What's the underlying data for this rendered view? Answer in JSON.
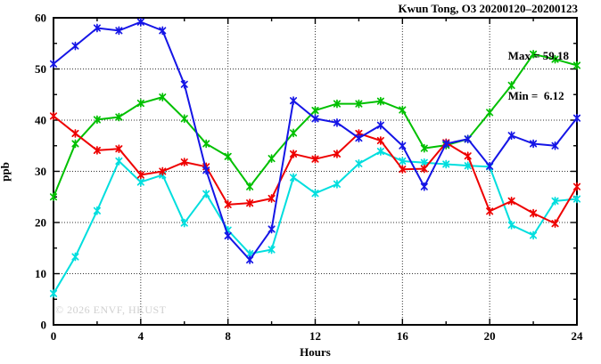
{
  "chart_data": {
    "type": "line",
    "title": "Kwun Tong, O3 20200120–20200123",
    "xlabel": "Hours",
    "ylabel": "ppb",
    "xlim": [
      0,
      24
    ],
    "ylim": [
      0,
      60
    ],
    "x_ticks": [
      0,
      4,
      8,
      12,
      16,
      20,
      24
    ],
    "x_minor_ticks": [
      2,
      6,
      10,
      14,
      18,
      22
    ],
    "y_ticks": [
      0,
      10,
      20,
      30,
      40,
      50,
      60
    ],
    "y_minor_ticks": [
      5,
      15,
      25,
      35,
      45,
      55
    ],
    "grid": "dotted lines at major ticks, mirrored inward tick marks on all four borders",
    "legend": "none",
    "marker": "asterisk",
    "x": [
      0,
      1,
      2,
      3,
      4,
      5,
      6,
      7,
      8,
      9,
      10,
      11,
      12,
      13,
      14,
      15,
      16,
      17,
      18,
      19,
      20,
      21,
      22,
      23,
      24
    ],
    "series": [
      {
        "name": "green",
        "color": "#00c000",
        "values": [
          25,
          35.4,
          40.1,
          40.6,
          43.3,
          44.5,
          40.3,
          35.4,
          32.9,
          27,
          32.5,
          37.5,
          41.9,
          43.2,
          43.2,
          43.7,
          42,
          34.5,
          35.1,
          36.3,
          41.5,
          46.8,
          52.9,
          51.9,
          50.7
        ]
      },
      {
        "name": "cyan",
        "color": "#00dede",
        "values": [
          6.12,
          13.3,
          22.3,
          32,
          27.9,
          29.3,
          19.9,
          25.6,
          18.5,
          13.9,
          14.7,
          28.8,
          25.7,
          27.5,
          31.5,
          33.9,
          32,
          31.7,
          31.4,
          31.1,
          30.9,
          19.5,
          17.5,
          24.2,
          24.6
        ]
      },
      {
        "name": "red",
        "color": "#ee0000",
        "values": [
          40.8,
          37.4,
          34.1,
          34.4,
          29.3,
          30,
          31.8,
          30.9,
          23.5,
          23.8,
          24.7,
          33.4,
          32.4,
          33.4,
          37.4,
          36,
          30.4,
          30.5,
          35.6,
          33,
          22.2,
          24.2,
          21.8,
          19.8,
          27
        ]
      },
      {
        "name": "blue",
        "color": "#1515e6",
        "values": [
          51,
          54.5,
          58,
          57.5,
          59.18,
          57.5,
          47,
          30.2,
          17.4,
          12.7,
          18.7,
          43.8,
          40.3,
          39.5,
          36.5,
          39,
          35,
          27,
          35.4,
          36.3,
          31,
          37,
          35.4,
          35,
          40.4
        ]
      }
    ],
    "annotations": {
      "max_label": "Max = 59.18",
      "min_label": "Min =  6.12"
    },
    "watermark": "© 2026 ENVF, HKUST"
  }
}
